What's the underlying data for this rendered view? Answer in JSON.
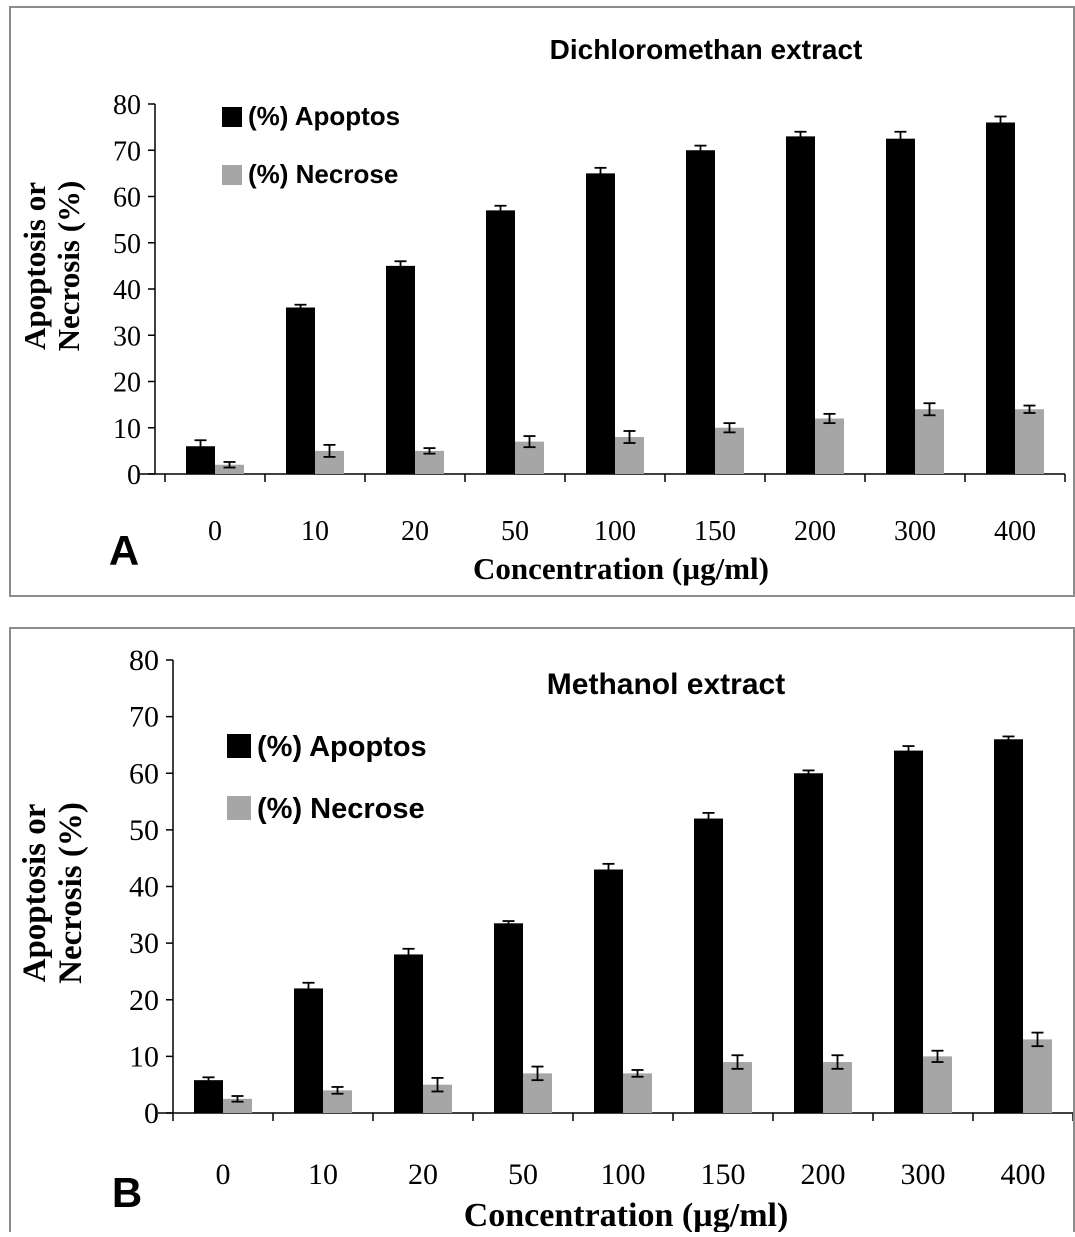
{
  "chart_data": [
    {
      "type": "bar",
      "panel_label": "A",
      "title": "Dichloromethan extract",
      "xlabel": "Concentration (µg/ml)",
      "ylabel_lines": [
        "Apoptosis or",
        "Necrosis (%)"
      ],
      "categories": [
        "0",
        "10",
        "20",
        "50",
        "100",
        "150",
        "200",
        "300",
        "400"
      ],
      "ylim": [
        0,
        80
      ],
      "yticks": [
        "0",
        "10",
        "20",
        "30",
        "40",
        "50",
        "60",
        "70",
        "80"
      ],
      "legend_position": "top-left",
      "grid": false,
      "series": [
        {
          "name": "(%) Apoptos",
          "color": "#000000",
          "values": [
            6,
            36,
            45,
            57,
            65,
            70,
            73,
            72.5,
            76
          ],
          "errors": [
            1.3,
            0.6,
            1,
            1,
            1.2,
            1,
            1,
            1.5,
            1.3
          ]
        },
        {
          "name": "(%) Necrose",
          "color": "#a6a6a6",
          "values": [
            2,
            5,
            5,
            7,
            8,
            10,
            12,
            14,
            14
          ],
          "errors": [
            0.6,
            1.3,
            0.6,
            1.2,
            1.3,
            1,
            1,
            1.3,
            0.8
          ]
        }
      ]
    },
    {
      "type": "bar",
      "panel_label": "B",
      "title": "Methanol extract",
      "xlabel": "Concentration (µg/ml)",
      "ylabel_lines": [
        "Apoptosis or",
        "Necrosis (%)"
      ],
      "categories": [
        "0",
        "10",
        "20",
        "50",
        "100",
        "150",
        "200",
        "300",
        "400"
      ],
      "ylim": [
        0,
        80
      ],
      "yticks": [
        "0",
        "10",
        "20",
        "30",
        "40",
        "50",
        "60",
        "70",
        "80"
      ],
      "legend_position": "top-left",
      "grid": false,
      "series": [
        {
          "name": "(%) Apoptos",
          "color": "#000000",
          "values": [
            5.8,
            22,
            28,
            33.5,
            43,
            52,
            60,
            64,
            66
          ],
          "errors": [
            0.5,
            1,
            1,
            0.4,
            1,
            1,
            0.5,
            0.8,
            0.5
          ]
        },
        {
          "name": "(%) Necrose",
          "color": "#a6a6a6",
          "values": [
            2.5,
            4,
            5,
            7,
            7,
            9,
            9,
            10,
            13
          ],
          "errors": [
            0.5,
            0.6,
            1.2,
            1.2,
            0.6,
            1.2,
            1.2,
            1,
            1.2
          ]
        }
      ]
    }
  ]
}
